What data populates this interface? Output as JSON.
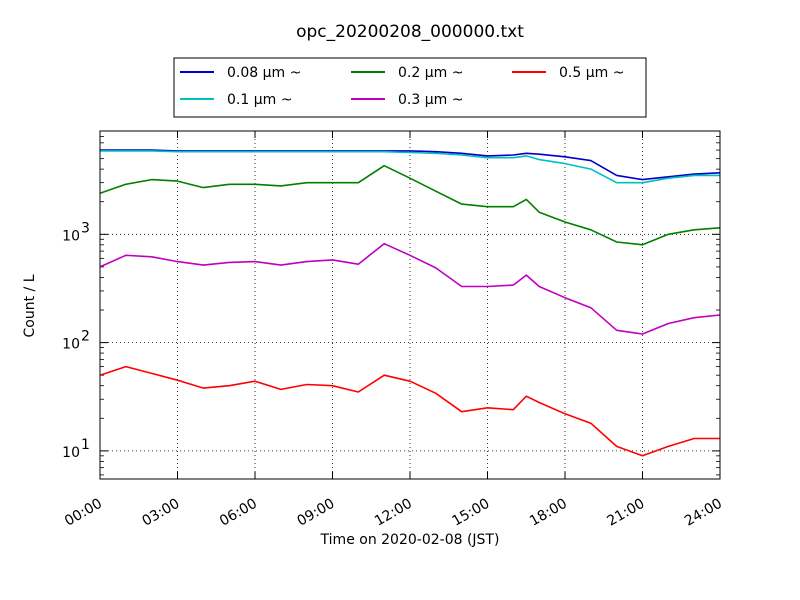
{
  "chart_data": {
    "type": "line",
    "title": "opc_20200208_000000.txt",
    "xlabel": "Time on 2020-02-08 (JST)",
    "ylabel": "Count / L",
    "yscale": "log",
    "xlim": [
      "00:00",
      "24:00"
    ],
    "ylim": [
      5.5,
      9000
    ],
    "x_ticks": [
      "00:00",
      "03:00",
      "06:00",
      "09:00",
      "12:00",
      "15:00",
      "18:00",
      "21:00",
      "24:00"
    ],
    "y_ticks": [
      {
        "value": 10,
        "label": "10",
        "exp": "1"
      },
      {
        "value": 100,
        "label": "10",
        "exp": "2"
      },
      {
        "value": 1000,
        "label": "10",
        "exp": "3"
      }
    ],
    "grid": true,
    "legend_position": "top",
    "x": [
      "00:00",
      "01:00",
      "02:00",
      "03:00",
      "04:00",
      "05:00",
      "06:00",
      "07:00",
      "08:00",
      "09:00",
      "10:00",
      "11:00",
      "12:00",
      "13:00",
      "14:00",
      "15:00",
      "16:00",
      "16:30",
      "17:00",
      "18:00",
      "19:00",
      "20:00",
      "21:00",
      "22:00",
      "23:00",
      "24:00"
    ],
    "series": [
      {
        "name": "0.08 μm ~",
        "color": "#0000cc",
        "values": [
          6000,
          6000,
          6000,
          5900,
          5900,
          5900,
          5900,
          5900,
          5900,
          5900,
          5900,
          5900,
          5900,
          5800,
          5600,
          5300,
          5400,
          5600,
          5500,
          5200,
          4800,
          3500,
          3200,
          3400,
          3600,
          3700
        ]
      },
      {
        "name": "0.1 μm ~",
        "color": "#00bfbf",
        "values": [
          5900,
          5900,
          5900,
          5800,
          5800,
          5800,
          5800,
          5800,
          5800,
          5800,
          5800,
          5800,
          5700,
          5600,
          5400,
          5100,
          5100,
          5300,
          4900,
          4500,
          4000,
          3000,
          3000,
          3300,
          3500,
          3500
        ]
      },
      {
        "name": "0.2 μm ~",
        "color": "#008000",
        "values": [
          2400,
          2900,
          3200,
          3100,
          2700,
          2900,
          2900,
          2800,
          3000,
          3000,
          3000,
          4300,
          3300,
          2500,
          1900,
          1800,
          1800,
          2100,
          1600,
          1300,
          1100,
          850,
          800,
          1000,
          1100,
          1150
        ]
      },
      {
        "name": "0.3 μm ~",
        "color": "#bf00bf",
        "values": [
          500,
          640,
          620,
          560,
          520,
          550,
          560,
          520,
          560,
          580,
          530,
          820,
          640,
          490,
          330,
          330,
          340,
          420,
          330,
          260,
          210,
          130,
          120,
          150,
          170,
          180
        ]
      },
      {
        "name": "0.5 μm ~",
        "color": "#ff0000",
        "values": [
          50,
          60,
          52,
          45,
          38,
          40,
          44,
          37,
          41,
          40,
          35,
          50,
          44,
          34,
          23,
          25,
          24,
          32,
          28,
          22,
          18,
          11,
          9,
          11,
          13,
          13
        ]
      }
    ]
  }
}
